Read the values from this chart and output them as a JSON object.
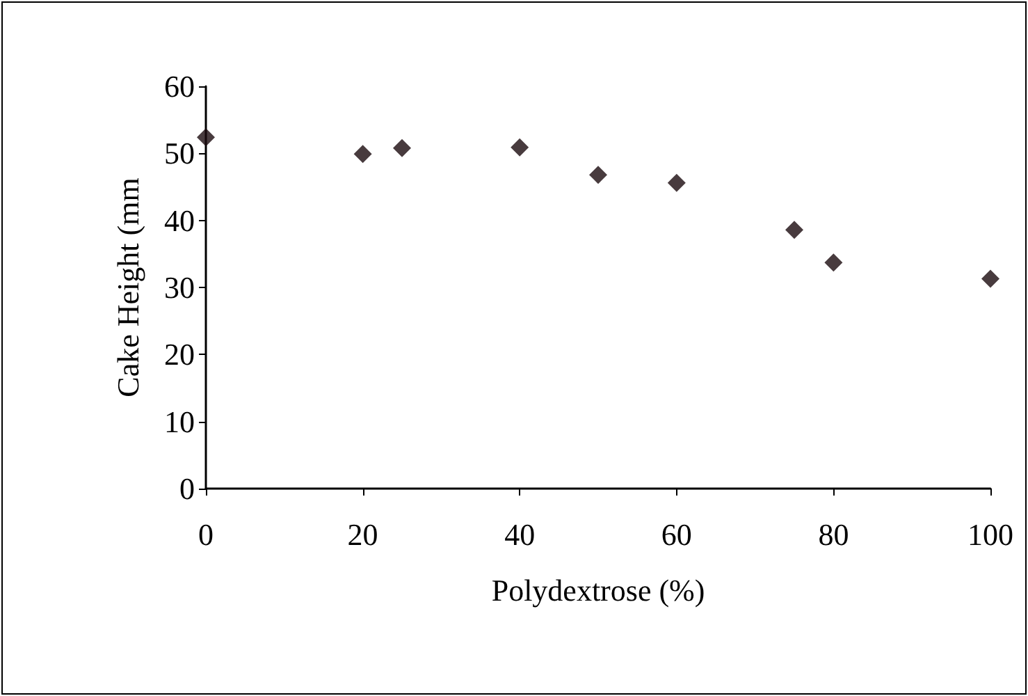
{
  "chart_data": {
    "type": "scatter",
    "xlabel": "Polydextrose (%)",
    "ylabel": "Cake Height (mm",
    "x": [
      0,
      20,
      25,
      40,
      50,
      60,
      75,
      80,
      100
    ],
    "series": [
      {
        "color": "#1a0a0e",
        "values": [
          52.4,
          49.9,
          50.8,
          50.9,
          46.8,
          45.6,
          38.6,
          33.7,
          31.3
        ]
      }
    ],
    "xlim": [
      0,
      100
    ],
    "xticks": [
      0,
      20,
      40,
      60,
      80,
      100
    ],
    "ylim": [
      0,
      60
    ],
    "yticks": [
      0,
      10,
      20,
      30,
      40,
      50,
      60
    ],
    "grid": false,
    "marker": "diamond"
  }
}
